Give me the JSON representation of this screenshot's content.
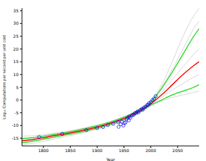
{
  "chart_data": {
    "type": "line",
    "x_label": "Year",
    "y_label": "Log₁₀ Computations per second per unit cost",
    "xlim": [
      1760,
      2090
    ],
    "xticks": [
      1800,
      1850,
      1900,
      1950,
      2000,
      2050
    ],
    "ylim": [
      -18,
      36
    ],
    "yticks": [
      -15,
      -10,
      -5,
      0,
      5,
      10,
      15,
      20,
      25,
      30,
      35
    ],
    "grid": false,
    "x": [
      1760,
      1780,
      1800,
      1820,
      1840,
      1860,
      1880,
      1900,
      1920,
      1940,
      1960,
      1980,
      2000,
      2020,
      2040,
      2060,
      2080,
      2090
    ],
    "series": [
      {
        "type": "line",
        "color": "#cccccc",
        "line_style": "solid",
        "values": [
          -14.2,
          -14,
          -13.6,
          -13,
          -12.4,
          -11.6,
          -10.8,
          -9.8,
          -8.7,
          -7.3,
          -5.6,
          -3.4,
          -0.5,
          6,
          15,
          25,
          33,
          36
        ]
      },
      {
        "type": "line",
        "color": "#cccccc",
        "line_style": "solid",
        "values": [
          -17.6,
          -17,
          -16.2,
          -15.3,
          -14.4,
          -13.5,
          -12.5,
          -11.4,
          -10.2,
          -8.8,
          -7.1,
          -4.9,
          -2.3,
          -0.5,
          1,
          2,
          3,
          3.5
        ]
      },
      {
        "type": "line",
        "color": "#cccccc",
        "line_style": "solid",
        "values": [
          -15,
          -14.6,
          -14,
          -13.3,
          -12.6,
          -11.9,
          -11,
          -10,
          -8.8,
          -7.4,
          -5.7,
          -3.5,
          -0.6,
          5,
          12,
          20,
          28,
          31
        ]
      },
      {
        "type": "line",
        "color": "#cccccc",
        "line_style": "solid",
        "values": [
          -16.5,
          -16,
          -15.2,
          -14.4,
          -13.6,
          -12.8,
          -11.9,
          -10.9,
          -9.7,
          -8.3,
          -6.6,
          -4.4,
          -1.8,
          1,
          4,
          6.5,
          9,
          10
        ]
      },
      {
        "type": "line",
        "color": "#cccccc",
        "line_style": "solid",
        "values": [
          -15.8,
          -15.3,
          -14.6,
          -13.8,
          -13.1,
          -12.3,
          -11.4,
          -10.4,
          -9.2,
          -7.8,
          -6.1,
          -3.9,
          -1.2,
          3,
          8,
          13,
          18,
          20
        ]
      },
      {
        "type": "line",
        "color": "#33dd33",
        "line_style": "solid",
        "values": [
          -15.2,
          -14.8,
          -14.2,
          -13.5,
          -12.8,
          -12,
          -11.1,
          -10.1,
          -8.9,
          -7.5,
          -5.8,
          -3.6,
          -0.8,
          4.5,
          11,
          18,
          25,
          28
        ]
      },
      {
        "type": "line",
        "color": "#33dd33",
        "line_style": "solid",
        "values": [
          -16.8,
          -16.2,
          -15.4,
          -14.6,
          -13.8,
          -13,
          -12.1,
          -11.1,
          -9.9,
          -8.5,
          -6.8,
          -4.6,
          -2,
          0,
          2,
          3.5,
          5,
          6
        ]
      },
      {
        "type": "line",
        "color": "#ff0000",
        "line_style": "solid",
        "values": [
          -16,
          -15.5,
          -14.8,
          -14,
          -13.3,
          -12.5,
          -11.6,
          -10.6,
          -9.4,
          -8,
          -6.3,
          -4.1,
          -1.5,
          2,
          6,
          10,
          13.5,
          15
        ]
      },
      {
        "type": "scatter",
        "color": "#0000ff",
        "marker": "circle",
        "x": [
          1792,
          1835,
          1880,
          1900,
          1911,
          1920,
          1930,
          1939,
          1940,
          1944,
          1946,
          1949,
          1951,
          1953,
          1955,
          1957,
          1959,
          1960,
          1962,
          1965,
          1968,
          1970,
          1973,
          1975,
          1977,
          1980,
          1983,
          1985,
          1987,
          1990,
          1993,
          1995,
          1997,
          2000,
          2003,
          2006,
          2009
        ],
        "values": [
          -14.5,
          -13.3,
          -11.8,
          -11,
          -10.6,
          -9.8,
          -9.3,
          -8.6,
          -10.5,
          -9.5,
          -8.5,
          -10,
          -9,
          -8.8,
          -7.5,
          -7,
          -8,
          -6.5,
          -7,
          -6,
          -5.8,
          -5.2,
          -5,
          -4.5,
          -4.8,
          -4,
          -3.5,
          -3.8,
          -3,
          -2.6,
          -2,
          -1.8,
          -1.2,
          -0.8,
          0,
          0.5,
          1.5
        ]
      }
    ]
  }
}
